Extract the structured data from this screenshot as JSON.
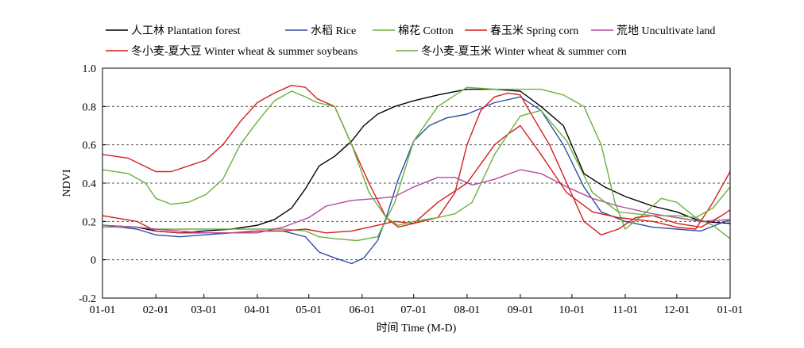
{
  "chart_data": {
    "type": "line",
    "title": "",
    "xlabel": "时间 Time (M-D)",
    "ylabel": "NDVI",
    "ylim": [
      -0.2,
      1.0
    ],
    "yticks": [
      -0.2,
      0,
      0.2,
      0.4,
      0.6,
      0.8,
      1.0
    ],
    "ytick_labels": [
      "-0.2",
      "0",
      "0.2",
      "0.4",
      "0.6",
      "0.8",
      "1.0"
    ],
    "grid": "horizontal dashed at 0, 0.2, 0.4, 0.6, 0.8",
    "legend_position": "top",
    "x_tick_labels": [
      "01-01",
      "02-01",
      "03-01",
      "04-01",
      "05-01",
      "06-01",
      "07-01",
      "08-01",
      "09-01",
      "10-01",
      "11-01",
      "12-01",
      "01-01"
    ],
    "x_tick_days": [
      0,
      31,
      59,
      90,
      120,
      151,
      181,
      212,
      243,
      273,
      304,
      334,
      365
    ],
    "series": [
      {
        "name": "人工林 Plantation forest",
        "color": "#000000",
        "x": [
          0,
          20,
          31,
          45,
          59,
          75,
          90,
          100,
          110,
          118,
          126,
          135,
          145,
          152,
          160,
          170,
          181,
          195,
          212,
          228,
          243,
          255,
          268,
          280,
          292,
          304,
          320,
          334,
          348,
          365
        ],
        "y": [
          0.18,
          0.17,
          0.15,
          0.14,
          0.15,
          0.16,
          0.18,
          0.21,
          0.27,
          0.37,
          0.49,
          0.54,
          0.62,
          0.7,
          0.76,
          0.8,
          0.83,
          0.86,
          0.89,
          0.89,
          0.88,
          0.8,
          0.7,
          0.45,
          0.38,
          0.33,
          0.28,
          0.25,
          0.2,
          0.19
        ]
      },
      {
        "name": "水稻 Rice",
        "color": "#2f4fa0",
        "x": [
          0,
          20,
          31,
          45,
          59,
          75,
          90,
          105,
          118,
          126,
          135,
          145,
          152,
          160,
          165,
          172,
          181,
          190,
          200,
          212,
          228,
          243,
          255,
          268,
          280,
          290,
          304,
          320,
          334,
          348,
          365
        ],
        "y": [
          0.18,
          0.16,
          0.13,
          0.12,
          0.13,
          0.14,
          0.15,
          0.15,
          0.12,
          0.04,
          0.01,
          -0.02,
          0.01,
          0.1,
          0.22,
          0.42,
          0.62,
          0.7,
          0.74,
          0.76,
          0.82,
          0.85,
          0.78,
          0.6,
          0.38,
          0.25,
          0.2,
          0.17,
          0.16,
          0.15,
          0.21
        ]
      },
      {
        "name": "棉花 Cotton",
        "color": "#6ab23e",
        "x": [
          0,
          20,
          31,
          45,
          59,
          75,
          90,
          105,
          118,
          126,
          135,
          148,
          160,
          170,
          181,
          195,
          212,
          228,
          243,
          255,
          268,
          280,
          290,
          298,
          304,
          315,
          325,
          334,
          345,
          355,
          365
        ],
        "y": [
          0.17,
          0.17,
          0.16,
          0.16,
          0.16,
          0.16,
          0.16,
          0.16,
          0.15,
          0.12,
          0.11,
          0.1,
          0.12,
          0.3,
          0.62,
          0.8,
          0.9,
          0.89,
          0.89,
          0.89,
          0.86,
          0.8,
          0.6,
          0.3,
          0.16,
          0.24,
          0.32,
          0.3,
          0.22,
          0.18,
          0.11
        ]
      },
      {
        "name": "春玉米 Spring corn",
        "color": "#d42020",
        "x": [
          0,
          20,
          31,
          45,
          59,
          75,
          90,
          105,
          118,
          130,
          145,
          160,
          170,
          181,
          195,
          205,
          212,
          220,
          228,
          236,
          243,
          250,
          260,
          270,
          280,
          290,
          300,
          310,
          320,
          334,
          348,
          360,
          365
        ],
        "y": [
          0.23,
          0.2,
          0.15,
          0.14,
          0.14,
          0.14,
          0.15,
          0.15,
          0.16,
          0.14,
          0.15,
          0.18,
          0.2,
          0.19,
          0.22,
          0.35,
          0.6,
          0.78,
          0.85,
          0.87,
          0.86,
          0.75,
          0.6,
          0.4,
          0.2,
          0.13,
          0.16,
          0.22,
          0.23,
          0.19,
          0.17,
          0.23,
          0.26
        ]
      },
      {
        "name": "荒地 Uncultivate land",
        "color": "#b24aa4",
        "x": [
          0,
          20,
          31,
          45,
          59,
          75,
          90,
          105,
          120,
          130,
          145,
          160,
          170,
          181,
          195,
          205,
          215,
          228,
          243,
          255,
          270,
          285,
          300,
          320,
          334,
          348,
          365
        ],
        "y": [
          0.18,
          0.17,
          0.16,
          0.15,
          0.14,
          0.14,
          0.14,
          0.17,
          0.22,
          0.28,
          0.31,
          0.32,
          0.33,
          0.38,
          0.43,
          0.43,
          0.39,
          0.42,
          0.47,
          0.45,
          0.38,
          0.32,
          0.28,
          0.24,
          0.22,
          0.2,
          0.21
        ]
      },
      {
        "name": "冬小麦-夏大豆 Winter wheat & summer soybeans",
        "color": "#d42020",
        "x": [
          0,
          15,
          31,
          40,
          50,
          60,
          70,
          80,
          90,
          100,
          110,
          118,
          125,
          135,
          145,
          155,
          165,
          172,
          181,
          195,
          212,
          220,
          228,
          235,
          243,
          255,
          270,
          285,
          300,
          320,
          334,
          345,
          355,
          365
        ],
        "y": [
          0.55,
          0.53,
          0.46,
          0.46,
          0.49,
          0.52,
          0.6,
          0.72,
          0.82,
          0.87,
          0.91,
          0.9,
          0.84,
          0.8,
          0.6,
          0.4,
          0.22,
          0.17,
          0.19,
          0.3,
          0.4,
          0.5,
          0.6,
          0.65,
          0.7,
          0.55,
          0.35,
          0.25,
          0.22,
          0.2,
          0.17,
          0.16,
          0.3,
          0.46
        ]
      },
      {
        "name": "冬小麦-夏玉米 Winter wheat & summer corn",
        "color": "#6ab23e",
        "x": [
          0,
          15,
          25,
          31,
          40,
          50,
          60,
          70,
          80,
          90,
          100,
          110,
          118,
          125,
          135,
          145,
          155,
          165,
          172,
          181,
          195,
          205,
          215,
          228,
          243,
          255,
          270,
          285,
          300,
          320,
          334,
          345,
          355,
          365
        ],
        "y": [
          0.47,
          0.45,
          0.4,
          0.32,
          0.29,
          0.3,
          0.34,
          0.42,
          0.6,
          0.72,
          0.83,
          0.88,
          0.85,
          0.82,
          0.8,
          0.6,
          0.35,
          0.22,
          0.18,
          0.2,
          0.22,
          0.24,
          0.3,
          0.55,
          0.75,
          0.78,
          0.62,
          0.35,
          0.25,
          0.23,
          0.23,
          0.22,
          0.27,
          0.38
        ]
      }
    ]
  }
}
